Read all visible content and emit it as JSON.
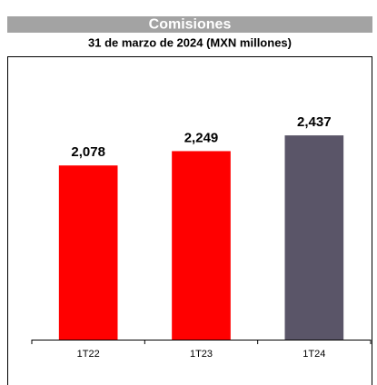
{
  "chart_data": {
    "type": "bar",
    "title": "Comisiones",
    "subtitle": "31 de marzo de 2024 (MXN millones)",
    "categories": [
      "1T22",
      "1T23",
      "1T24"
    ],
    "values": [
      2078,
      2249,
      2437
    ],
    "value_labels": [
      "2,078",
      "2,249",
      "2,437"
    ],
    "colors": [
      "#ff0000",
      "#ff0000",
      "#5a5568"
    ],
    "ylim": [
      0,
      3500
    ]
  }
}
